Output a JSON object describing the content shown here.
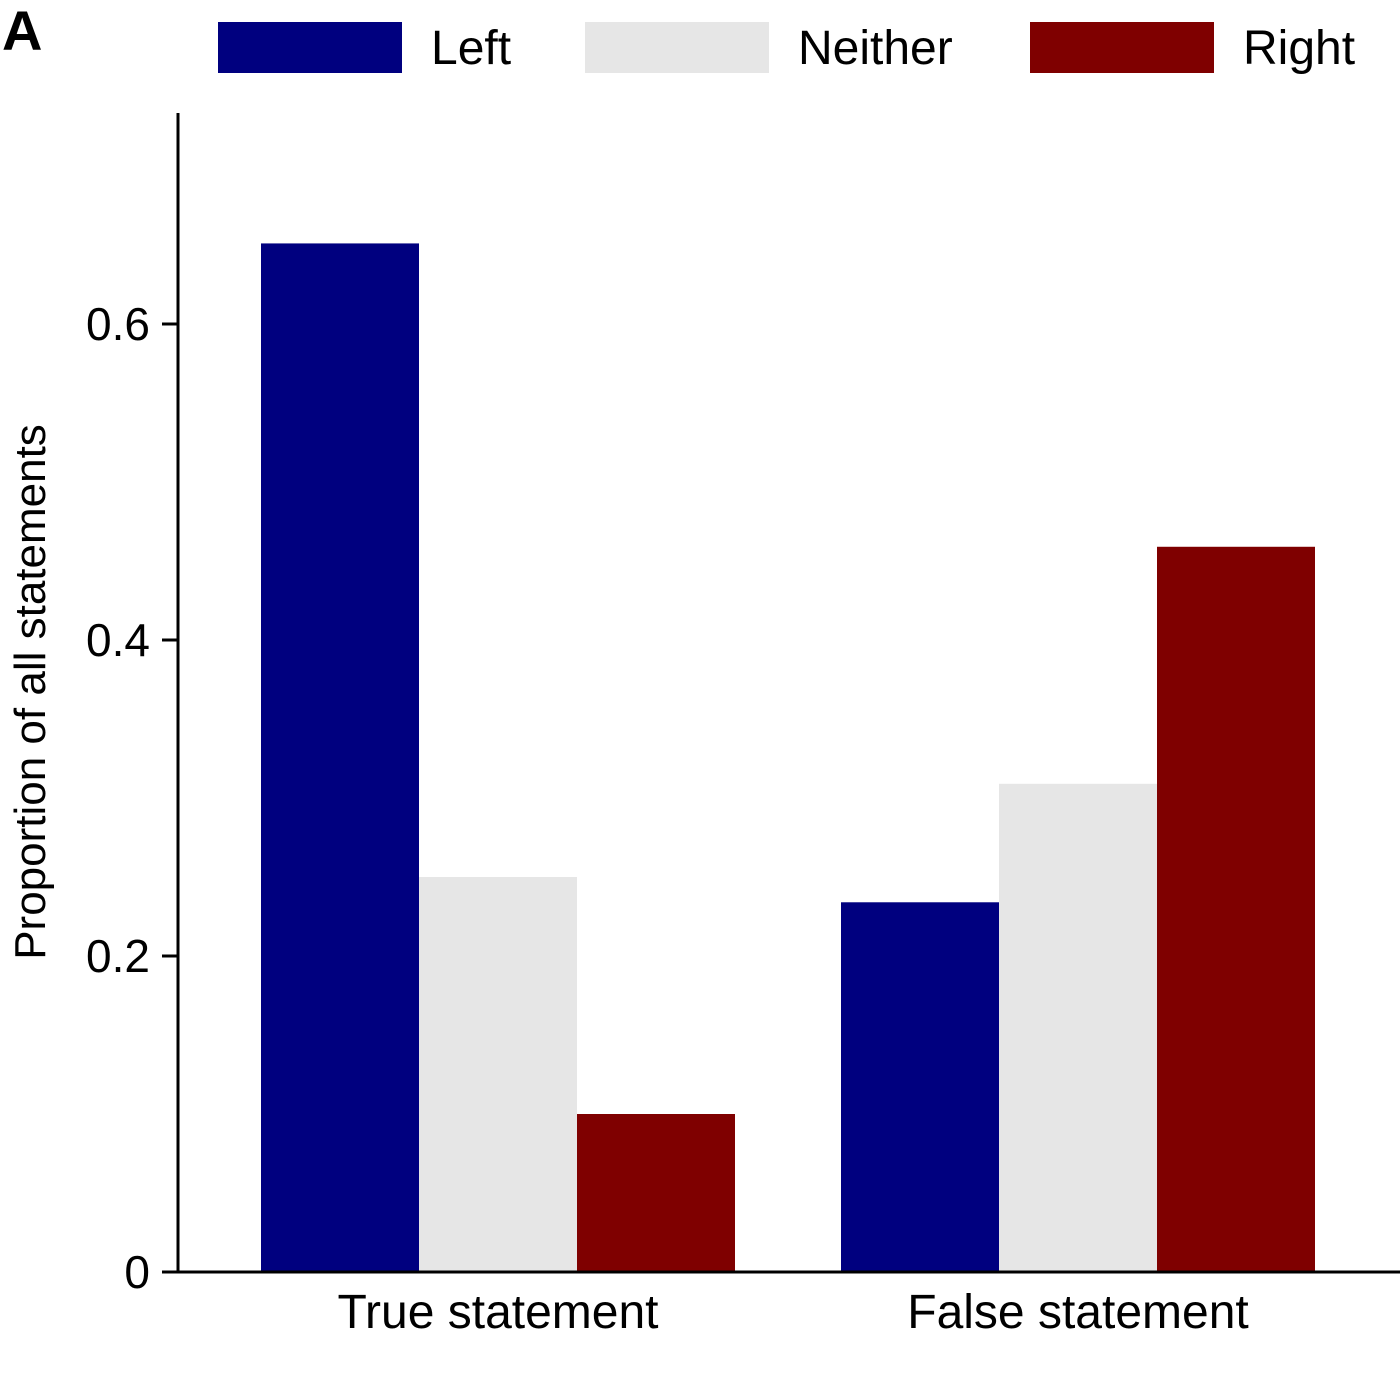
{
  "panel_label": "A",
  "chart_data": {
    "type": "bar",
    "title": "",
    "xlabel": "",
    "ylabel": "Proportion of all statements",
    "ylim": [
      0,
      0.73
    ],
    "yticks": [
      0,
      0.2,
      0.4,
      0.6
    ],
    "ytick_labels": [
      "0",
      "0.2",
      "0.4",
      "0.6"
    ],
    "categories": [
      "True statement",
      "False statement"
    ],
    "series": [
      {
        "name": "Left",
        "color": "#00007f",
        "values": [
          0.651,
          0.234
        ]
      },
      {
        "name": "Neither",
        "color": "#e6e6e6",
        "values": [
          0.25,
          0.309
        ]
      },
      {
        "name": "Right",
        "color": "#7f0000",
        "values": [
          0.1,
          0.459
        ]
      }
    ],
    "legend": "top, horizontal",
    "grid": false
  }
}
